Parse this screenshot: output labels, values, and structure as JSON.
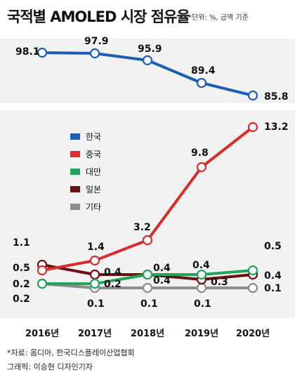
{
  "header": {
    "title": "국적별 AMOLED 시장 점유율",
    "unit_note": "*단위: %, 금액 기준"
  },
  "footer": {
    "source": "*자료: 옴디아, 한국디스플레이산업협회",
    "credit": "그래픽: 이승현 디자인기자"
  },
  "chart_data": {
    "type": "line",
    "title": "국적별 AMOLED 시장 점유율",
    "x": [
      "2016년",
      "2017년",
      "2018년",
      "2019년",
      "2020년"
    ],
    "axis_break": true,
    "legend_position": "top-left",
    "grid": false,
    "series": [
      {
        "name": "한국",
        "color": "#1a5fb4",
        "values": [
          98.1,
          97.9,
          95.9,
          89.4,
          85.8
        ]
      },
      {
        "name": "중국",
        "color": "#d62d2d",
        "values": [
          0.5,
          1.4,
          3.2,
          9.8,
          13.2
        ]
      },
      {
        "name": "대만",
        "color": "#22a55a",
        "values": [
          0.2,
          0.2,
          0.4,
          0.4,
          0.5
        ]
      },
      {
        "name": "일본",
        "color": "#6b0f0f",
        "values": [
          1.1,
          0.4,
          0.4,
          0.3,
          0.4
        ]
      },
      {
        "name": "기타",
        "color": "#8c8c8c",
        "values": [
          0.2,
          0.1,
          0.1,
          0.1,
          0.1
        ]
      }
    ],
    "data_labels": [
      {
        "series": "한국",
        "index": 0,
        "text": "98.1"
      },
      {
        "series": "한국",
        "index": 1,
        "text": "97.9"
      },
      {
        "series": "한국",
        "index": 2,
        "text": "95.9"
      },
      {
        "series": "한국",
        "index": 3,
        "text": "89.4"
      },
      {
        "series": "한국",
        "index": 4,
        "text": "85.8"
      },
      {
        "series": "중국",
        "index": 1,
        "text": "1.4"
      },
      {
        "series": "중국",
        "index": 2,
        "text": "3.2"
      },
      {
        "series": "중국",
        "index": 3,
        "text": "9.8"
      },
      {
        "series": "중국",
        "index": 4,
        "text": "13.2"
      },
      {
        "series": "일본",
        "index": 0,
        "text": "1.1"
      },
      {
        "series": "일본",
        "index": 1,
        "text": "0.4"
      },
      {
        "series": "일본",
        "index": 2,
        "text": "0.4"
      },
      {
        "series": "일본",
        "index": 3,
        "text": "0.3"
      },
      {
        "series": "일본",
        "index": 4,
        "text": "0.4"
      },
      {
        "series": "중국",
        "index": 0,
        "text": "0.5"
      },
      {
        "series": "대만",
        "index": 0,
        "text": "0.2"
      },
      {
        "series": "대만",
        "index": 1,
        "text": "0.2"
      },
      {
        "series": "대만",
        "index": 2,
        "text": "0.4"
      },
      {
        "series": "대만",
        "index": 3,
        "text": "0.4"
      },
      {
        "series": "대만",
        "index": 4,
        "text": "0.5"
      },
      {
        "series": "기타",
        "index": 0,
        "text": "0.2"
      },
      {
        "series": "기타",
        "index": 1,
        "text": "0.1"
      },
      {
        "series": "기타",
        "index": 2,
        "text": "0.1"
      },
      {
        "series": "기타",
        "index": 3,
        "text": "0.1"
      },
      {
        "series": "기타",
        "index": 4,
        "text": "0.1"
      }
    ]
  }
}
